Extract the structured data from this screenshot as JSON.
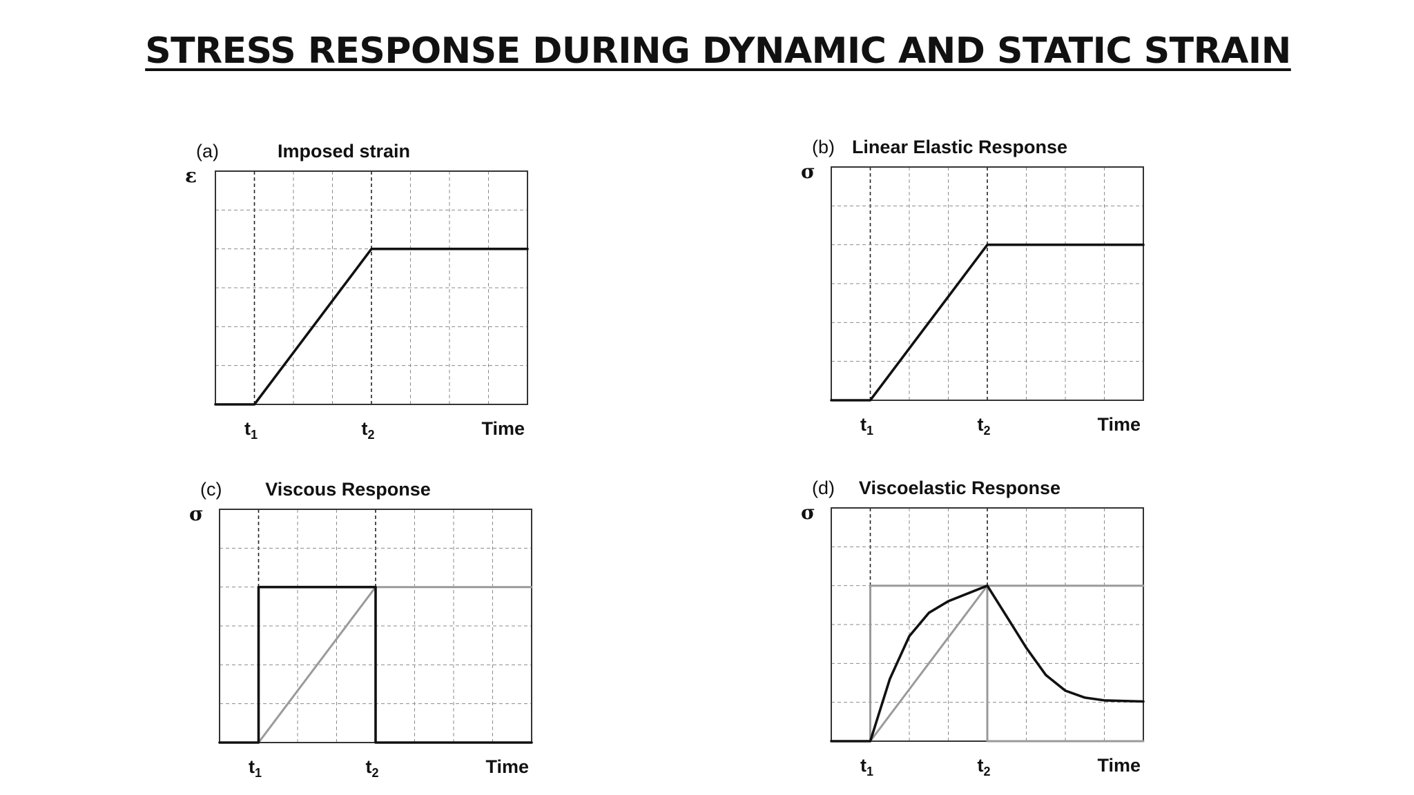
{
  "page": {
    "title": "STRESS RESPONSE DURING DYNAMIC AND STATIC STRAIN"
  },
  "colors": {
    "primary": "#111111",
    "reference": "#9a9a9a",
    "grid": "#8a8a8a"
  },
  "chart_data": [
    {
      "type": "line",
      "panel": "(a)",
      "title": "Imposed strain",
      "ylabel": "ε",
      "xlabel": "Time",
      "xlim": [
        0,
        8
      ],
      "ylim": [
        0,
        6
      ],
      "xticks": [
        {
          "x": 1,
          "label": "t",
          "sub": "1"
        },
        {
          "x": 4,
          "label": "t",
          "sub": "2"
        }
      ],
      "grid": true,
      "series": [
        {
          "style": "primary",
          "points": [
            [
              0,
              0
            ],
            [
              1,
              0
            ],
            [
              4,
              4
            ],
            [
              8,
              4
            ]
          ]
        }
      ]
    },
    {
      "type": "line",
      "panel": "(b)",
      "title": "Linear Elastic Response",
      "ylabel": "σ",
      "xlabel": "Time",
      "xlim": [
        0,
        8
      ],
      "ylim": [
        0,
        6
      ],
      "xticks": [
        {
          "x": 1,
          "label": "t",
          "sub": "1"
        },
        {
          "x": 4,
          "label": "t",
          "sub": "2"
        }
      ],
      "grid": true,
      "series": [
        {
          "style": "primary",
          "points": [
            [
              0,
              0
            ],
            [
              1,
              0
            ],
            [
              4,
              4
            ],
            [
              8,
              4
            ]
          ]
        }
      ]
    },
    {
      "type": "line",
      "panel": "(c)",
      "title": "Viscous Response",
      "ylabel": "σ",
      "xlabel": "Time",
      "xlim": [
        0,
        8
      ],
      "ylim": [
        0,
        6
      ],
      "xticks": [
        {
          "x": 1,
          "label": "t",
          "sub": "1"
        },
        {
          "x": 4,
          "label": "t",
          "sub": "2"
        }
      ],
      "grid": true,
      "series": [
        {
          "style": "reference",
          "points": [
            [
              1,
              0
            ],
            [
              4,
              4
            ],
            [
              8,
              4
            ]
          ]
        },
        {
          "style": "primary",
          "points": [
            [
              0,
              0
            ],
            [
              1,
              0
            ],
            [
              1,
              4
            ],
            [
              4,
              4
            ],
            [
              4,
              0
            ],
            [
              8,
              0
            ]
          ]
        }
      ]
    },
    {
      "type": "line",
      "panel": "(d)",
      "title": "Viscoelastic Response",
      "ylabel": "σ",
      "xlabel": "Time",
      "xlim": [
        0,
        8
      ],
      "ylim": [
        0,
        6
      ],
      "xticks": [
        {
          "x": 1,
          "label": "t",
          "sub": "1"
        },
        {
          "x": 4,
          "label": "t",
          "sub": "2"
        }
      ],
      "grid": true,
      "series": [
        {
          "style": "reference",
          "points": [
            [
              1,
              0
            ],
            [
              4,
              4
            ],
            [
              8,
              4
            ]
          ]
        },
        {
          "style": "reference",
          "points": [
            [
              1,
              0
            ],
            [
              1,
              4
            ],
            [
              4,
              4
            ],
            [
              4,
              0
            ],
            [
              8,
              0
            ]
          ]
        },
        {
          "style": "primary",
          "points": [
            [
              0,
              0
            ],
            [
              1,
              0
            ],
            [
              1.5,
              1.6
            ],
            [
              2,
              2.7
            ],
            [
              2.5,
              3.3
            ],
            [
              3,
              3.6
            ],
            [
              3.5,
              3.8
            ],
            [
              4,
              4
            ],
            [
              4.5,
              3.2
            ],
            [
              5,
              2.4
            ],
            [
              5.5,
              1.7
            ],
            [
              6,
              1.3
            ],
            [
              6.5,
              1.12
            ],
            [
              7,
              1.05
            ],
            [
              8,
              1.02
            ]
          ]
        }
      ]
    }
  ]
}
